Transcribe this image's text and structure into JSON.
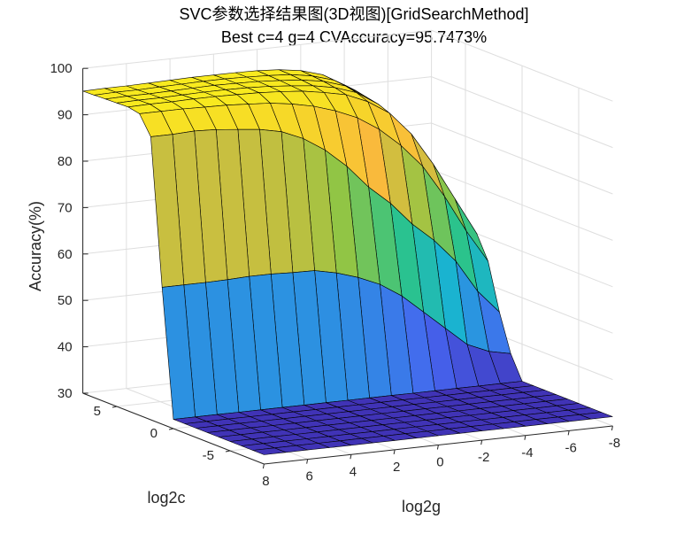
{
  "figure": {
    "title_line1": "SVC参数选择结果图(3D视图)[GridSearchMethod]",
    "title_line2": "Best c=4 g=4 CVAccuracy=95.7473%"
  },
  "chart_data": {
    "type": "surface",
    "title": "SVC参数选择结果图(3D视图)[GridSearchMethod]",
    "subtitle": "Best c=4 g=4 CVAccuracy=95.7473%",
    "xlabel": "log2c",
    "ylabel": "log2g",
    "zlabel": "Accuracy(%)",
    "x_ticks": [
      5,
      0,
      -5
    ],
    "y_ticks": [
      8,
      6,
      4,
      2,
      0,
      -2,
      -4,
      -6,
      -8
    ],
    "z_ticks": [
      30,
      40,
      50,
      60,
      70,
      80,
      90,
      100
    ],
    "xlim": [
      -8,
      8
    ],
    "ylim": [
      -8,
      8
    ],
    "zlim": [
      30,
      100
    ],
    "grid": true,
    "colormap": [
      "#3e26a8",
      "#4665f0",
      "#19b2d6",
      "#2bc38a",
      "#92c544",
      "#f9b93c",
      "#f6d52a",
      "#f9fb15"
    ],
    "log2c": [
      -8,
      -7,
      -6,
      -5,
      -4,
      -3,
      -2,
      -1,
      0,
      1,
      2,
      3,
      4,
      5,
      6,
      7,
      8
    ],
    "log2g": [
      -8,
      -7,
      -6,
      -5,
      -4,
      -3,
      -2,
      -1,
      0,
      1,
      2,
      3,
      4,
      5,
      6,
      7,
      8
    ],
    "accuracy_rows_by_log2c": [
      [
        32.0,
        32.0,
        32.0,
        32.0,
        32.0,
        32.0,
        32.0,
        32.0,
        32.0,
        32.0,
        32.0,
        32.0,
        32.0,
        32.0,
        32.0,
        32.0,
        32.0
      ],
      [
        32.0,
        32.0,
        32.0,
        32.0,
        32.0,
        32.0,
        32.0,
        32.0,
        32.0,
        32.0,
        32.0,
        32.0,
        32.0,
        32.0,
        32.0,
        32.0,
        32.0
      ],
      [
        32.0,
        32.0,
        32.0,
        32.0,
        32.0,
        32.0,
        32.0,
        32.0,
        32.0,
        32.0,
        32.0,
        32.0,
        32.0,
        32.0,
        32.0,
        32.0,
        32.0
      ],
      [
        32.0,
        32.0,
        32.0,
        32.0,
        32.0,
        32.0,
        32.0,
        32.0,
        32.0,
        32.0,
        32.0,
        32.0,
        32.0,
        32.0,
        32.0,
        32.0,
        32.0
      ],
      [
        32.0,
        32.0,
        32.0,
        32.0,
        32.0,
        32.0,
        32.0,
        32.0,
        32.0,
        32.0,
        32.0,
        32.0,
        32.0,
        32.0,
        32.0,
        32.0,
        32.0
      ],
      [
        32.0,
        32.0,
        32.0,
        32.0,
        32.0,
        32.0,
        32.0,
        32.0,
        32.0,
        32.0,
        32.0,
        32.0,
        32.0,
        32.0,
        32.0,
        32.0,
        32.0
      ],
      [
        32.0,
        32.0,
        32.0,
        32.0,
        32.0,
        32.0,
        32.0,
        32.0,
        32.0,
        32.0,
        32.0,
        32.0,
        32.0,
        32.0,
        32.0,
        32.0,
        32.0
      ],
      [
        32.0,
        32.0,
        32.0,
        32.0,
        32.0,
        32.0,
        32.0,
        32.0,
        32.0,
        32.0,
        32.0,
        32.0,
        32.0,
        32.0,
        32.0,
        32.0,
        32.0
      ],
      [
        32.0,
        32.0,
        32.0,
        32.0,
        32.0,
        32.0,
        32.0,
        32.0,
        32.0,
        32.0,
        32.0,
        32.0,
        32.0,
        32.0,
        32.0,
        32.0,
        32.0
      ],
      [
        37.0,
        38.0,
        40.0,
        44.0,
        48.0,
        52.0,
        55.0,
        57.0,
        58.5,
        59.5,
        59.6,
        59.8,
        59.8,
        59.6,
        59.5,
        59.5,
        59.5
      ],
      [
        45.0,
        50.0,
        57.0,
        62.0,
        66.0,
        71.0,
        75.0,
        80.0,
        84.0,
        87.0,
        89.0,
        90.0,
        90.5,
        91.0,
        91.2,
        91.0,
        91.0
      ],
      [
        55.0,
        62.0,
        70.0,
        77.0,
        82.0,
        86.0,
        89.0,
        91.0,
        92.5,
        93.5,
        94.2,
        94.5,
        94.8,
        94.9,
        95.0,
        95.0,
        95.0
      ],
      [
        60.0,
        68.0,
        76.0,
        83.0,
        88.0,
        91.0,
        93.0,
        94.0,
        94.8,
        95.2,
        95.5,
        95.6,
        95.7,
        95.7,
        95.6,
        95.6,
        95.5
      ],
      [
        60.0,
        69.0,
        77.0,
        84.0,
        89.0,
        92.0,
        93.6,
        94.5,
        95.0,
        95.4,
        95.6,
        95.7,
        95.7,
        95.6,
        95.5,
        95.5,
        95.4
      ],
      [
        60.0,
        69.5,
        78.0,
        85.0,
        89.5,
        92.5,
        94.0,
        94.8,
        95.2,
        95.5,
        95.6,
        95.7,
        95.6,
        95.5,
        95.4,
        95.4,
        95.3
      ],
      [
        60.0,
        70.0,
        78.5,
        85.5,
        90.0,
        92.8,
        94.2,
        95.0,
        95.3,
        95.5,
        95.6,
        95.6,
        95.5,
        95.4,
        95.3,
        95.3,
        95.2
      ],
      [
        60.0,
        70.0,
        79.0,
        86.0,
        90.3,
        93.0,
        94.4,
        95.1,
        95.4,
        95.5,
        95.5,
        95.5,
        95.4,
        95.3,
        95.2,
        95.2,
        95.1
      ]
    ]
  }
}
